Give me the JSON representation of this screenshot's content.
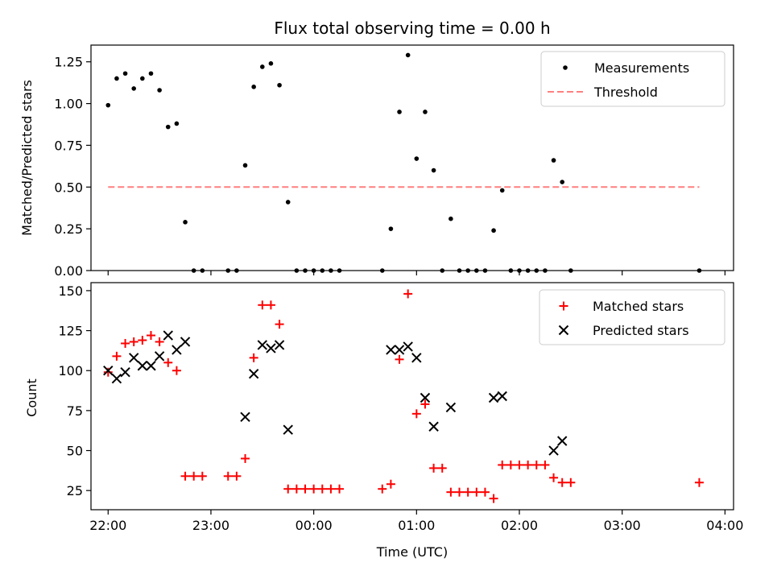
{
  "title": "Flux total observing time = 0.00 h",
  "colors": {
    "measurement": "#000000",
    "threshold": "#ff7f7f",
    "matched": "#ff0000",
    "predicted": "#000000"
  },
  "chart_data": [
    {
      "type": "scatter",
      "title": "Flux total observing time = 0.00 h",
      "ylabel": "Matched/Predicted stars",
      "xlabel": "",
      "xlim": [
        "21:50",
        "04:05"
      ],
      "ylim": [
        0,
        1.35
      ],
      "y_ticks": [
        0.0,
        0.25,
        0.5,
        0.75,
        1.0,
        1.25
      ],
      "y_tick_labels": [
        "0.00",
        "0.25",
        "0.50",
        "0.75",
        "1.00",
        "1.25"
      ],
      "legend": {
        "position": "top-right",
        "entries": [
          "Measurements",
          "Threshold"
        ]
      },
      "series": [
        {
          "name": "Measurements",
          "marker": "dot",
          "points": [
            [
              "22:00",
              0.99
            ],
            [
              "22:05",
              1.15
            ],
            [
              "22:10",
              1.18
            ],
            [
              "22:15",
              1.09
            ],
            [
              "22:20",
              1.15
            ],
            [
              "22:25",
              1.18
            ],
            [
              "22:30",
              1.08
            ],
            [
              "22:35",
              0.86
            ],
            [
              "22:40",
              0.88
            ],
            [
              "22:45",
              0.29
            ],
            [
              "22:50",
              0.0
            ],
            [
              "22:55",
              0.0
            ],
            [
              "23:10",
              0.0
            ],
            [
              "23:15",
              0.0
            ],
            [
              "23:20",
              0.63
            ],
            [
              "23:25",
              1.1
            ],
            [
              "23:30",
              1.22
            ],
            [
              "23:35",
              1.24
            ],
            [
              "23:40",
              1.11
            ],
            [
              "23:45",
              0.41
            ],
            [
              "23:50",
              0.0
            ],
            [
              "23:55",
              0.0
            ],
            [
              "00:00",
              0.0
            ],
            [
              "00:05",
              0.0
            ],
            [
              "00:10",
              0.0
            ],
            [
              "00:15",
              0.0
            ],
            [
              "00:40",
              0.0
            ],
            [
              "00:45",
              0.25
            ],
            [
              "00:50",
              0.95
            ],
            [
              "00:55",
              1.29
            ],
            [
              "01:00",
              0.67
            ],
            [
              "01:05",
              0.95
            ],
            [
              "01:10",
              0.6
            ],
            [
              "01:15",
              0.0
            ],
            [
              "01:20",
              0.31
            ],
            [
              "01:25",
              0.0
            ],
            [
              "01:30",
              0.0
            ],
            [
              "01:35",
              0.0
            ],
            [
              "01:40",
              0.0
            ],
            [
              "01:45",
              0.24
            ],
            [
              "01:50",
              0.48
            ],
            [
              "01:55",
              0.0
            ],
            [
              "02:00",
              0.0
            ],
            [
              "02:05",
              0.0
            ],
            [
              "02:10",
              0.0
            ],
            [
              "02:15",
              0.0
            ],
            [
              "02:20",
              0.66
            ],
            [
              "02:25",
              0.53
            ],
            [
              "02:30",
              0.0
            ],
            [
              "03:45",
              0.0
            ]
          ]
        },
        {
          "name": "Threshold",
          "style": "dashed",
          "points": [
            [
              "22:00",
              0.5
            ],
            [
              "03:45",
              0.5
            ]
          ]
        }
      ]
    },
    {
      "type": "scatter",
      "ylabel": "Count",
      "xlabel": "Time (UTC)",
      "xlim": [
        "21:50",
        "04:05"
      ],
      "ylim": [
        13,
        155
      ],
      "y_ticks": [
        25,
        50,
        75,
        100,
        125,
        150
      ],
      "y_tick_labels": [
        "25",
        "50",
        "75",
        "100",
        "125",
        "150"
      ],
      "x_ticks": [
        "22:00",
        "23:00",
        "00:00",
        "01:00",
        "02:00",
        "03:00",
        "04:00"
      ],
      "x_tick_labels": [
        "22:00",
        "23:00",
        "00:00",
        "01:00",
        "02:00",
        "03:00",
        "04:00"
      ],
      "legend": {
        "position": "top-right",
        "entries": [
          "Matched stars",
          "Predicted stars"
        ]
      },
      "series": [
        {
          "name": "Matched stars",
          "marker": "plus",
          "points": [
            [
              "22:00",
              99
            ],
            [
              "22:05",
              109
            ],
            [
              "22:10",
              117
            ],
            [
              "22:15",
              118
            ],
            [
              "22:20",
              119
            ],
            [
              "22:25",
              122
            ],
            [
              "22:30",
              118
            ],
            [
              "22:35",
              105
            ],
            [
              "22:40",
              100
            ],
            [
              "22:45",
              34
            ],
            [
              "22:50",
              34
            ],
            [
              "22:55",
              34
            ],
            [
              "23:10",
              34
            ],
            [
              "23:15",
              34
            ],
            [
              "23:20",
              45
            ],
            [
              "23:25",
              108
            ],
            [
              "23:30",
              141
            ],
            [
              "23:35",
              141
            ],
            [
              "23:40",
              129
            ],
            [
              "23:45",
              26
            ],
            [
              "23:50",
              26
            ],
            [
              "23:55",
              26
            ],
            [
              "00:00",
              26
            ],
            [
              "00:05",
              26
            ],
            [
              "00:10",
              26
            ],
            [
              "00:15",
              26
            ],
            [
              "00:40",
              26
            ],
            [
              "00:45",
              29
            ],
            [
              "00:50",
              107
            ],
            [
              "00:55",
              148
            ],
            [
              "01:00",
              73
            ],
            [
              "01:05",
              79
            ],
            [
              "01:10",
              39
            ],
            [
              "01:15",
              39
            ],
            [
              "01:20",
              24
            ],
            [
              "01:25",
              24
            ],
            [
              "01:30",
              24
            ],
            [
              "01:35",
              24
            ],
            [
              "01:40",
              24
            ],
            [
              "01:45",
              20
            ],
            [
              "01:50",
              41
            ],
            [
              "01:55",
              41
            ],
            [
              "02:00",
              41
            ],
            [
              "02:05",
              41
            ],
            [
              "02:10",
              41
            ],
            [
              "02:15",
              41
            ],
            [
              "02:20",
              33
            ],
            [
              "02:25",
              30
            ],
            [
              "02:30",
              30
            ],
            [
              "03:45",
              30
            ]
          ]
        },
        {
          "name": "Predicted stars",
          "marker": "x",
          "points": [
            [
              "22:00",
              100
            ],
            [
              "22:05",
              95
            ],
            [
              "22:10",
              99
            ],
            [
              "22:15",
              108
            ],
            [
              "22:20",
              103
            ],
            [
              "22:25",
              103
            ],
            [
              "22:30",
              109
            ],
            [
              "22:35",
              122
            ],
            [
              "22:40",
              113
            ],
            [
              "22:45",
              118
            ],
            [
              "23:20",
              71
            ],
            [
              "23:25",
              98
            ],
            [
              "23:30",
              116
            ],
            [
              "23:35",
              114
            ],
            [
              "23:40",
              116
            ],
            [
              "23:45",
              63
            ],
            [
              "00:45",
              113
            ],
            [
              "00:50",
              113
            ],
            [
              "00:55",
              115
            ],
            [
              "01:00",
              108
            ],
            [
              "01:05",
              83
            ],
            [
              "01:10",
              65
            ],
            [
              "01:20",
              77
            ],
            [
              "01:45",
              83
            ],
            [
              "01:50",
              84
            ],
            [
              "02:20",
              50
            ],
            [
              "02:25",
              56
            ]
          ]
        }
      ]
    }
  ]
}
